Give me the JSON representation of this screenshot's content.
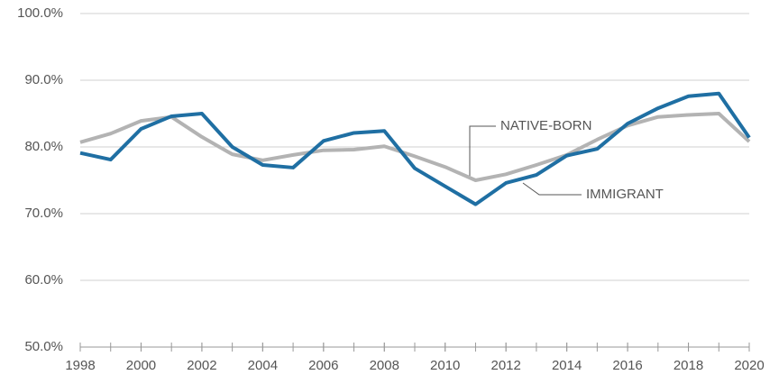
{
  "chart_data": {
    "type": "line",
    "x": [
      1998,
      1999,
      2000,
      2001,
      2002,
      2003,
      2004,
      2005,
      2006,
      2007,
      2008,
      2009,
      2010,
      2011,
      2012,
      2013,
      2014,
      2015,
      2016,
      2017,
      2018,
      2019,
      2020
    ],
    "series": [
      {
        "name": "NATIVE-BORN",
        "color": "#b3b3b3",
        "values": [
          80.7,
          82.0,
          83.9,
          84.5,
          81.5,
          78.9,
          78.0,
          78.8,
          79.5,
          79.6,
          80.1,
          78.6,
          77.0,
          75.0,
          75.9,
          77.3,
          78.8,
          81.1,
          83.2,
          84.5,
          84.8,
          85.0,
          80.8
        ]
      },
      {
        "name": "IMMIGRANT",
        "color": "#1f6fa3",
        "values": [
          79.1,
          78.1,
          82.7,
          84.6,
          85.0,
          80.0,
          77.3,
          76.9,
          80.9,
          82.1,
          82.4,
          76.8,
          74.1,
          71.4,
          74.6,
          75.8,
          78.7,
          79.7,
          83.5,
          85.8,
          87.6,
          88.0,
          81.4
        ]
      }
    ],
    "xlim": [
      1998,
      2020
    ],
    "xticks": [
      1998,
      2000,
      2002,
      2004,
      2006,
      2008,
      2010,
      2012,
      2014,
      2016,
      2018,
      2020
    ],
    "ylim": [
      50,
      100
    ],
    "yticks": [
      {
        "value": 50,
        "label": "50.0%"
      },
      {
        "value": 60,
        "label": "60.0%"
      },
      {
        "value": 70,
        "label": "70.0%"
      },
      {
        "value": 80,
        "label": "80.0%"
      },
      {
        "value": 90,
        "label": "90.0%"
      },
      {
        "value": 100,
        "label": "100.0%"
      }
    ],
    "grid": true
  }
}
